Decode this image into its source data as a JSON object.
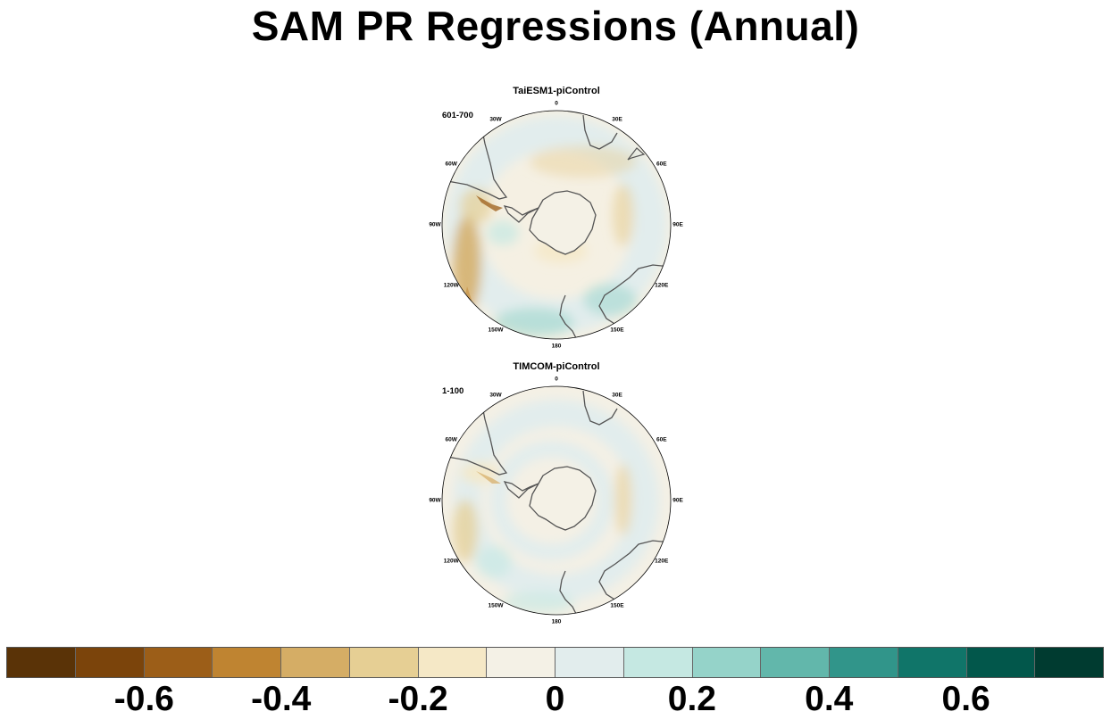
{
  "title": "SAM PR Regressions (Annual)",
  "panels": [
    {
      "title": "TaiESM1-piControl",
      "years": "601-700"
    },
    {
      "title": "TIMCOM-piControl",
      "years": "1-100"
    }
  ],
  "lon_labels": [
    "0",
    "30E",
    "60E",
    "90E",
    "120E",
    "150E",
    "180",
    "150W",
    "120W",
    "90W",
    "60W",
    "30W"
  ],
  "colorbar": {
    "colors": [
      "#5a3307",
      "#7b440b",
      "#9c5e18",
      "#bf8431",
      "#d5ad65",
      "#e6cf94",
      "#f5e8c6",
      "#f4f1e6",
      "#e2eded",
      "#c5e8e2",
      "#95d3c9",
      "#62b7ab",
      "#31958a",
      "#107569",
      "#02574b",
      "#003b30"
    ],
    "tick_labels": [
      "-0.6",
      "-0.4",
      "-0.2",
      "0",
      "0.2",
      "0.4",
      "0.6"
    ]
  },
  "colors": {
    "coast": "#555555",
    "land_fill": "#f4f1e6"
  }
}
